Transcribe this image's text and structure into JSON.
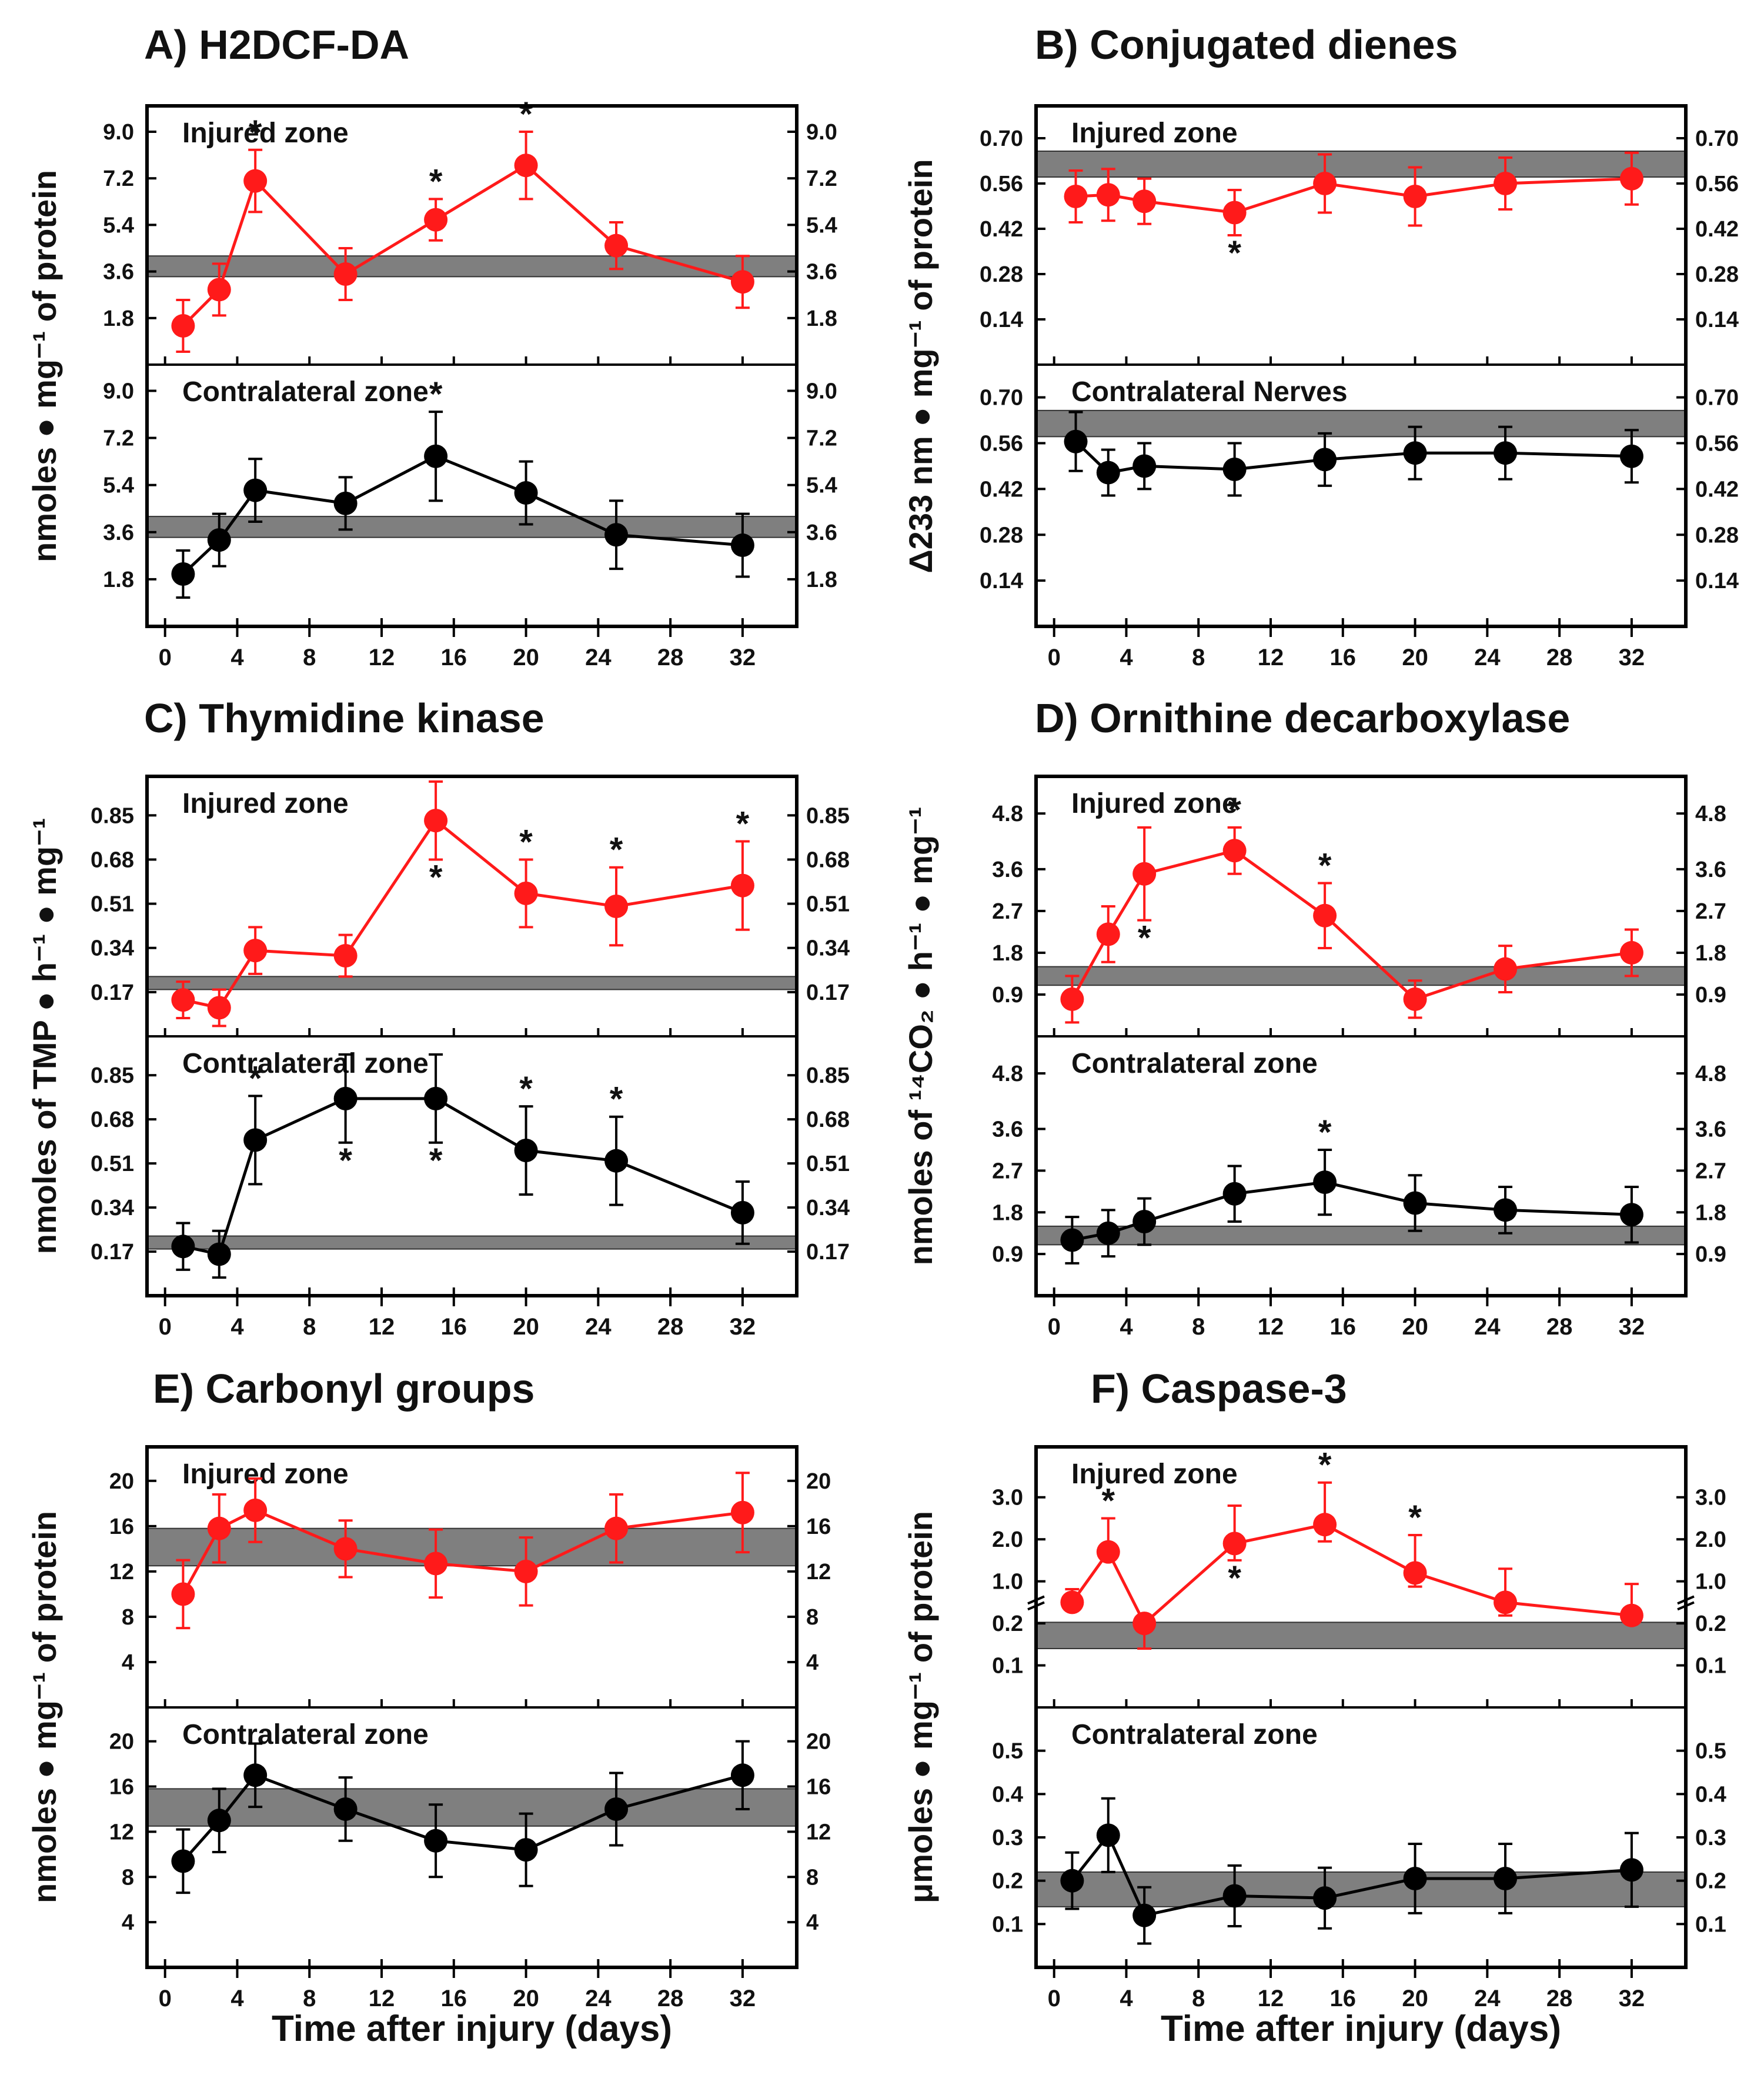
{
  "figure": {
    "x_axis_label": "Time after injury (days)",
    "band_color": "#7f7f7f",
    "injured_color": "#ff1a1a",
    "contralateral_color": "#000000"
  },
  "chart_data": [
    {
      "id": "A",
      "type": "line",
      "title": "A) H2DCF-DA",
      "ylabel": "nmoles ● mg⁻¹ of protein",
      "xlabel": "Time after injury (days)",
      "xlim": [
        -1,
        35
      ],
      "xticks": [
        0,
        4,
        8,
        12,
        16,
        20,
        24,
        28,
        32
      ],
      "panels": [
        {
          "zone_label": "Injured zone",
          "color": "#ff1a1a",
          "ylim": [
            0.0,
            10.0
          ],
          "yticks": [
            1.8,
            3.6,
            5.4,
            7.2,
            9.0
          ],
          "ytick_labels": [
            "1.8",
            "3.6",
            "5.4",
            "7.2",
            "9.0"
          ],
          "band": [
            3.4,
            4.2
          ],
          "x": [
            1,
            3,
            5,
            10,
            15,
            20,
            25,
            32
          ],
          "y": [
            1.5,
            2.9,
            7.1,
            3.5,
            5.6,
            7.7,
            4.6,
            3.2
          ],
          "err": [
            1.0,
            1.0,
            1.2,
            1.0,
            0.8,
            1.3,
            0.9,
            1.0
          ],
          "stars": [
            {
              "i": 2,
              "pos": "above"
            },
            {
              "i": 4,
              "pos": "above"
            },
            {
              "i": 5,
              "pos": "above"
            }
          ]
        },
        {
          "zone_label": "Contralateral zone",
          "color": "#000000",
          "ylim": [
            0.0,
            10.0
          ],
          "yticks": [
            1.8,
            3.6,
            5.4,
            7.2,
            9.0
          ],
          "ytick_labels": [
            "1.8",
            "3.6",
            "5.4",
            "7.2",
            "9.0"
          ],
          "band": [
            3.4,
            4.2
          ],
          "x": [
            1,
            3,
            5,
            10,
            15,
            20,
            25,
            32
          ],
          "y": [
            2.0,
            3.3,
            5.2,
            4.7,
            6.5,
            5.1,
            3.5,
            3.1
          ],
          "err": [
            0.9,
            1.0,
            1.2,
            1.0,
            1.7,
            1.2,
            1.3,
            1.2
          ],
          "stars": [
            {
              "i": 4,
              "pos": "above"
            }
          ]
        }
      ]
    },
    {
      "id": "B",
      "type": "line",
      "title": "B) Conjugated dienes",
      "ylabel": "Δ233 nm ● mg⁻¹ of protein",
      "xlabel": "",
      "xlim": [
        -1,
        35
      ],
      "xticks": [
        0,
        4,
        8,
        12,
        16,
        20,
        24,
        28,
        32
      ],
      "panels": [
        {
          "zone_label": "Injured zone",
          "color": "#ff1a1a",
          "ylim": [
            0.0,
            0.8
          ],
          "yticks": [
            0.14,
            0.28,
            0.42,
            0.56,
            0.7
          ],
          "ytick_labels": [
            "0.14",
            "0.28",
            "0.42",
            "0.56",
            "0.70"
          ],
          "band": [
            0.58,
            0.66
          ],
          "x": [
            1.2,
            3,
            5,
            10,
            15,
            20,
            25,
            32
          ],
          "y": [
            0.52,
            0.525,
            0.505,
            0.47,
            0.56,
            0.52,
            0.56,
            0.575
          ],
          "err": [
            0.08,
            0.08,
            0.07,
            0.07,
            0.09,
            0.09,
            0.08,
            0.08
          ],
          "stars": [
            {
              "i": 3,
              "pos": "below"
            }
          ]
        },
        {
          "zone_label": "Contralateral Nerves",
          "color": "#000000",
          "ylim": [
            0.0,
            0.8
          ],
          "yticks": [
            0.14,
            0.28,
            0.42,
            0.56,
            0.7
          ],
          "ytick_labels": [
            "0.14",
            "0.28",
            "0.42",
            "0.56",
            "0.70"
          ],
          "band": [
            0.58,
            0.66
          ],
          "x": [
            1.2,
            3,
            5,
            10,
            15,
            20,
            25,
            32
          ],
          "y": [
            0.565,
            0.47,
            0.49,
            0.48,
            0.51,
            0.53,
            0.53,
            0.52
          ],
          "err": [
            0.09,
            0.07,
            0.07,
            0.08,
            0.08,
            0.08,
            0.08,
            0.08
          ],
          "stars": []
        }
      ]
    },
    {
      "id": "C",
      "type": "line",
      "title": "C) Thymidine kinase",
      "ylabel": "nmoles of TMP ● h⁻¹ ● mg⁻¹",
      "xlabel": "",
      "xlim": [
        -1,
        35
      ],
      "xticks": [
        0,
        4,
        8,
        12,
        16,
        20,
        24,
        28,
        32
      ],
      "panels": [
        {
          "zone_label": "Injured zone",
          "color": "#ff1a1a",
          "ylim": [
            0.0,
            1.0
          ],
          "yticks": [
            0.17,
            0.34,
            0.51,
            0.68,
            0.85
          ],
          "ytick_labels": [
            "0.17",
            "0.34",
            "0.51",
            "0.68",
            "0.85"
          ],
          "band": [
            0.18,
            0.23
          ],
          "x": [
            1,
            3,
            5,
            10,
            15,
            20,
            25,
            32
          ],
          "y": [
            0.14,
            0.11,
            0.33,
            0.31,
            0.83,
            0.55,
            0.5,
            0.58
          ],
          "err": [
            0.07,
            0.07,
            0.09,
            0.08,
            0.15,
            0.13,
            0.15,
            0.17
          ],
          "stars": [
            {
              "i": 4,
              "pos": "below"
            },
            {
              "i": 5,
              "pos": "above"
            },
            {
              "i": 6,
              "pos": "above"
            },
            {
              "i": 7,
              "pos": "above"
            }
          ]
        },
        {
          "zone_label": "Contralateral zone",
          "color": "#000000",
          "ylim": [
            0.0,
            1.0
          ],
          "yticks": [
            0.17,
            0.34,
            0.51,
            0.68,
            0.85
          ],
          "ytick_labels": [
            "0.17",
            "0.34",
            "0.51",
            "0.68",
            "0.85"
          ],
          "band": [
            0.18,
            0.23
          ],
          "x": [
            1,
            3,
            5,
            10,
            15,
            20,
            25,
            32
          ],
          "y": [
            0.19,
            0.16,
            0.6,
            0.76,
            0.76,
            0.56,
            0.52,
            0.32
          ],
          "err": [
            0.09,
            0.09,
            0.17,
            0.17,
            0.17,
            0.17,
            0.17,
            0.12
          ],
          "stars": [
            {
              "i": 2,
              "pos": "above"
            },
            {
              "i": 3,
              "pos": "below"
            },
            {
              "i": 4,
              "pos": "below"
            },
            {
              "i": 5,
              "pos": "above"
            },
            {
              "i": 6,
              "pos": "above"
            }
          ]
        }
      ]
    },
    {
      "id": "D",
      "type": "line",
      "title": "D) Ornithine decarboxylase",
      "ylabel": "nmoles of ¹⁴CO₂ ● h⁻¹ ● mg⁻¹",
      "xlabel": "",
      "xlim": [
        -1,
        35
      ],
      "xticks": [
        0,
        4,
        8,
        12,
        16,
        20,
        24,
        28,
        32
      ],
      "panels": [
        {
          "zone_label": "Injured zone",
          "color": "#ff1a1a",
          "ylim": [
            0.0,
            5.6
          ],
          "yticks": [
            0.9,
            1.8,
            2.7,
            3.6,
            4.8
          ],
          "ytick_labels": [
            "0.9",
            "1.8",
            "2.7",
            "3.6",
            "4.8"
          ],
          "band": [
            1.1,
            1.5
          ],
          "x": [
            1,
            3,
            5,
            10,
            15,
            20,
            25,
            32
          ],
          "y": [
            0.8,
            2.2,
            3.5,
            4.0,
            2.6,
            0.8,
            1.45,
            1.8
          ],
          "err": [
            0.5,
            0.6,
            1.0,
            0.5,
            0.7,
            0.4,
            0.5,
            0.5
          ],
          "stars": [
            {
              "i": 2,
              "pos": "below"
            },
            {
              "i": 3,
              "pos": "above"
            },
            {
              "i": 4,
              "pos": "above"
            }
          ]
        },
        {
          "zone_label": "Contralateral zone",
          "color": "#000000",
          "ylim": [
            0.0,
            5.6
          ],
          "yticks": [
            0.9,
            1.8,
            2.7,
            3.6,
            4.8
          ],
          "ytick_labels": [
            "0.9",
            "1.8",
            "2.7",
            "3.6",
            "4.8"
          ],
          "band": [
            1.1,
            1.5
          ],
          "x": [
            1,
            3,
            5,
            10,
            15,
            20,
            25,
            32
          ],
          "y": [
            1.2,
            1.35,
            1.6,
            2.2,
            2.45,
            2.0,
            1.85,
            1.75
          ],
          "err": [
            0.5,
            0.5,
            0.5,
            0.6,
            0.7,
            0.6,
            0.5,
            0.6
          ],
          "stars": [
            {
              "i": 4,
              "pos": "above"
            }
          ]
        }
      ]
    },
    {
      "id": "E",
      "type": "line",
      "title": "E) Carbonyl groups",
      "ylabel": "nmoles ● mg⁻¹ of protein",
      "xlabel": "Time after injury (days)",
      "xlim": [
        -1,
        35
      ],
      "xticks": [
        0,
        4,
        8,
        12,
        16,
        20,
        24,
        28,
        32
      ],
      "panels": [
        {
          "zone_label": "Injured zone",
          "color": "#ff1a1a",
          "ylim": [
            0,
            23
          ],
          "yticks": [
            4,
            8,
            12,
            16,
            20
          ],
          "ytick_labels": [
            "4",
            "8",
            "12",
            "16",
            "20"
          ],
          "band": [
            12.5,
            15.8
          ],
          "x": [
            1,
            3,
            5,
            10,
            15,
            20,
            25,
            32
          ],
          "y": [
            10.0,
            15.8,
            17.4,
            14.0,
            12.7,
            12.0,
            15.8,
            17.2
          ],
          "err": [
            3.0,
            3.0,
            2.8,
            2.5,
            3.0,
            3.0,
            3.0,
            3.5
          ],
          "stars": []
        },
        {
          "zone_label": "Contralateral zone",
          "color": "#000000",
          "ylim": [
            0,
            23
          ],
          "yticks": [
            4,
            8,
            12,
            16,
            20
          ],
          "ytick_labels": [
            "4",
            "8",
            "12",
            "16",
            "20"
          ],
          "band": [
            12.5,
            15.8
          ],
          "x": [
            1,
            3,
            5,
            10,
            15,
            20,
            25,
            32
          ],
          "y": [
            9.4,
            13.0,
            17.0,
            14.0,
            11.2,
            10.4,
            14.0,
            17.0
          ],
          "err": [
            2.8,
            2.8,
            2.8,
            2.8,
            3.2,
            3.2,
            3.2,
            3.0
          ],
          "stars": []
        }
      ]
    },
    {
      "id": "F",
      "type": "line",
      "title": "F) Caspase-3",
      "ylabel": "μmoles ● mg⁻¹ of protein",
      "xlabel": "Time after injury (days)",
      "xlim": [
        -1,
        35
      ],
      "xticks": [
        0,
        4,
        8,
        12,
        16,
        20,
        24,
        28,
        32
      ],
      "panels": [
        {
          "zone_label": "Injured zone",
          "color": "#ff1a1a",
          "scale": "broken",
          "ytick_pairs": [
            [
              0.1,
              0.1
            ],
            [
              0.2,
              0.2
            ],
            [
              1.0,
              0.3
            ],
            [
              2.0,
              0.4
            ],
            [
              3.0,
              0.5
            ]
          ],
          "ylim_display": [
            0.0,
            0.62
          ],
          "ytick_labels": [
            "0.1",
            "0.2",
            "1.0",
            "2.0",
            "3.0"
          ],
          "band": [
            0.14,
            0.22
          ],
          "x": [
            1,
            3,
            5,
            10,
            15,
            20,
            25,
            32
          ],
          "y": [
            0.6,
            1.7,
            0.2,
            1.9,
            2.35,
            1.2,
            0.6,
            0.35
          ],
          "err_up": [
            0.25,
            0.8,
            0.08,
            0.9,
            1.0,
            0.9,
            0.7,
            0.6
          ],
          "err_down": [
            0.05,
            0.2,
            0.06,
            0.4,
            0.4,
            0.3,
            0.25,
            0.1
          ],
          "stars": [
            {
              "i": 1,
              "pos": "above"
            },
            {
              "i": 3,
              "pos": "below"
            },
            {
              "i": 4,
              "pos": "above"
            },
            {
              "i": 5,
              "pos": "above"
            }
          ]
        },
        {
          "zone_label": "Contralateral zone",
          "color": "#000000",
          "ylim": [
            0.0,
            0.6
          ],
          "yticks": [
            0.1,
            0.2,
            0.3,
            0.4,
            0.5
          ],
          "ytick_labels": [
            "0.1",
            "0.2",
            "0.3",
            "0.4",
            "0.5"
          ],
          "band": [
            0.14,
            0.22
          ],
          "x": [
            1,
            3,
            5,
            10,
            15,
            20,
            25,
            32
          ],
          "y": [
            0.2,
            0.305,
            0.12,
            0.165,
            0.16,
            0.205,
            0.205,
            0.225
          ],
          "err": [
            0.065,
            0.085,
            0.065,
            0.07,
            0.07,
            0.08,
            0.08,
            0.085
          ],
          "stars": []
        }
      ]
    }
  ]
}
